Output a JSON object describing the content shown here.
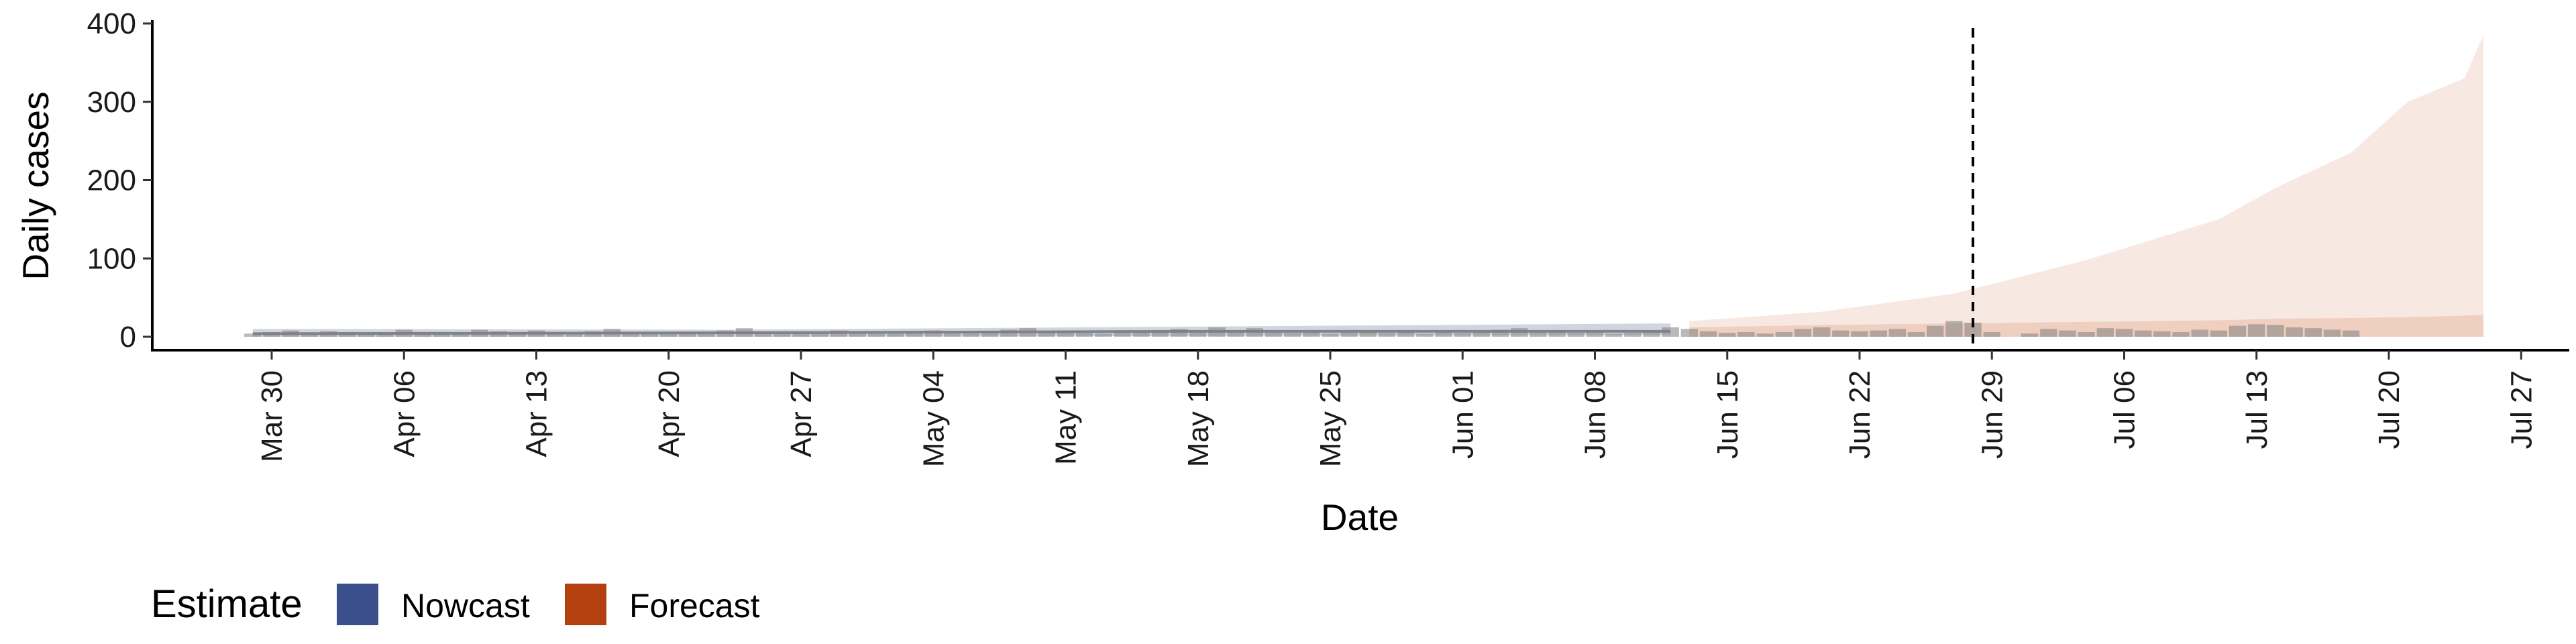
{
  "chart_data": {
    "type": "area",
    "xlabel": "Date",
    "ylabel": "Daily cases",
    "ylim": [
      0,
      400
    ],
    "y_ticks": [
      0,
      100,
      200,
      300,
      400
    ],
    "x_ticks": [
      "Mar 30",
      "Apr 06",
      "Apr 13",
      "Apr 20",
      "Apr 27",
      "May 04",
      "May 11",
      "May 18",
      "May 25",
      "Jun 01",
      "Jun 08",
      "Jun 15",
      "Jun 22",
      "Jun 29",
      "Jul 06",
      "Jul 13",
      "Jul 20",
      "Jul 27"
    ],
    "x_tick_dates": [
      "2020-03-30",
      "2020-04-06",
      "2020-04-13",
      "2020-04-20",
      "2020-04-27",
      "2020-05-04",
      "2020-05-11",
      "2020-05-18",
      "2020-05-25",
      "2020-06-01",
      "2020-06-08",
      "2020-06-15",
      "2020-06-22",
      "2020-06-29",
      "2020-07-06",
      "2020-07-13",
      "2020-07-20",
      "2020-07-27"
    ],
    "xlim": [
      "2020-03-23",
      "2020-07-30"
    ],
    "vline_date": "2020-06-28",
    "legend": {
      "title": "Estimate",
      "position": "bottom-left",
      "entries": [
        {
          "label": "Nowcast",
          "color": "#3a4f8c"
        },
        {
          "label": "Forecast",
          "color": "#b5400f"
        }
      ]
    },
    "colors": {
      "bars": "#7f7f7f",
      "nowcast_band": "#9aa1b4",
      "forecast_outer": "#f7e9e2",
      "forecast_inner": "#efcfbf",
      "vline": "#000000"
    },
    "reported_cases": {
      "start_date": "2020-03-29",
      "values": [
        4,
        6,
        8,
        5,
        7,
        6,
        4,
        5,
        9,
        6,
        4,
        5,
        9,
        7,
        6,
        8,
        6,
        4,
        7,
        10,
        6,
        5,
        4,
        6,
        4,
        8,
        11,
        7,
        4,
        6,
        5,
        8,
        6,
        5,
        4,
        6,
        8,
        5,
        6,
        7,
        9,
        11,
        6,
        7,
        5,
        4,
        8,
        6,
        7,
        10,
        6,
        12,
        8,
        11,
        6,
        5,
        7,
        4,
        6,
        8,
        5,
        7,
        4,
        6,
        5,
        7,
        9,
        11,
        6,
        8,
        5,
        7,
        4,
        5,
        8,
        12,
        10,
        7,
        5,
        6,
        4,
        6,
        10,
        12,
        8,
        7,
        8,
        10,
        6,
        14,
        20,
        18,
        6,
        0,
        4,
        10,
        8,
        6,
        11,
        10,
        8,
        7,
        6,
        9,
        8,
        14,
        16,
        15,
        12,
        11,
        9,
        8
      ]
    },
    "nowcast": {
      "start_date": "2020-03-29",
      "end_date": "2020-06-12",
      "median": [
        4,
        5,
        7,
        7
      ],
      "lower": [
        0,
        0,
        1,
        2
      ],
      "upper": [
        10,
        9,
        13,
        17
      ]
    },
    "forecast": {
      "dates": [
        "2020-06-13",
        "2020-06-20",
        "2020-06-27",
        "2020-07-04",
        "2020-07-11",
        "2020-07-14",
        "2020-07-18",
        "2020-07-21",
        "2020-07-24",
        "2020-07-25"
      ],
      "outer_upper": [
        20,
        32,
        55,
        98,
        150,
        190,
        235,
        300,
        330,
        385
      ],
      "inner_upper": [
        12,
        15,
        17,
        19,
        21,
        23,
        24,
        25,
        27,
        28
      ]
    }
  }
}
